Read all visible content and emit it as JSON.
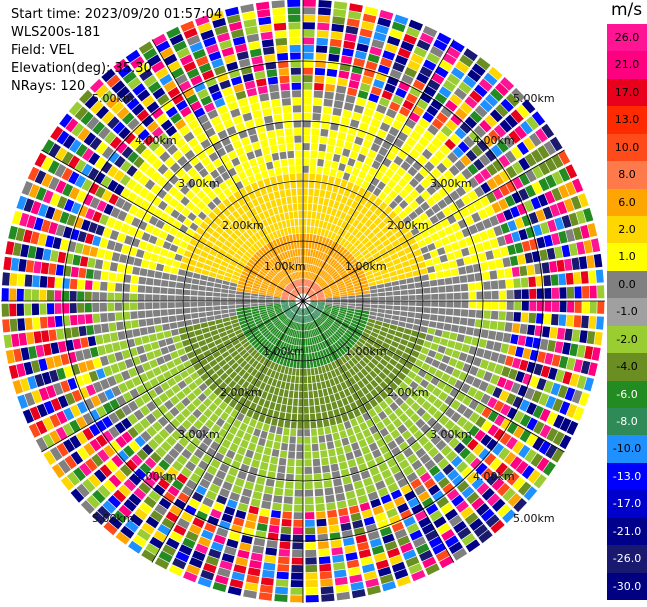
{
  "info": {
    "start_time": "Start time: 2023/09/20 01:57:04",
    "instrument": "WLS200s-181",
    "field": "Field: VEL",
    "elevation": "Elevation(deg): 35.30",
    "nrays": "NRays: 120"
  },
  "colorbar": {
    "unit": "m/s",
    "ticks": [
      "26.0",
      "21.0",
      "17.0",
      "13.0",
      "10.0",
      "8.0",
      "6.0",
      "2.0",
      "1.0",
      "0.0",
      "-1.0",
      "-2.0",
      "-4.0",
      "-6.0",
      "-8.0",
      "-10.0",
      "-13.0",
      "-17.0",
      "-21.0",
      "-26.0",
      "-30.0"
    ],
    "colors": [
      "#ff1493",
      "#ff0080",
      "#e8001c",
      "#ff2a00",
      "#ff4a1a",
      "#ff7a4a",
      "#ffa500",
      "#ffd700",
      "#ffff00",
      "#808080",
      "#a0a0a0",
      "#9acd32",
      "#6b8e23",
      "#228b22",
      "#2e8b57",
      "#1e90ff",
      "#0000ff",
      "#0000cd",
      "#00008b",
      "#191970",
      "#000080"
    ]
  },
  "ring_labels": [
    "1.00km",
    "2.00km",
    "3.00km",
    "4.00km",
    "5.00km"
  ]
}
